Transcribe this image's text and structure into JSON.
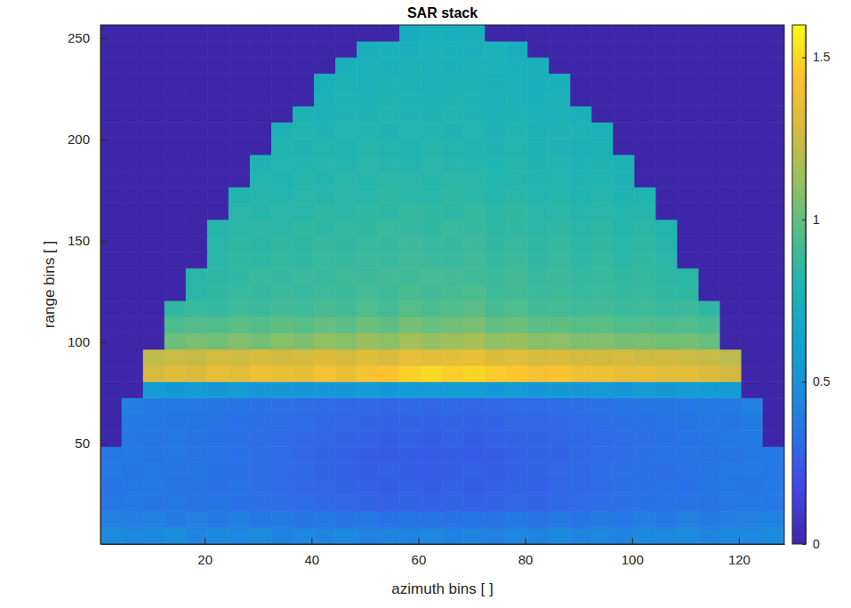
{
  "chart_data": {
    "type": "heatmap",
    "title": "SAR stack",
    "x_label": "azimuth bins [ ]",
    "y_label": "range bins [ ]",
    "color": "parula",
    "xlim": [
      0.5,
      128.5
    ],
    "ylim": [
      0.5,
      256.5
    ],
    "xticks": [
      20,
      40,
      60,
      80,
      100,
      120
    ],
    "yticks": [
      50,
      100,
      150,
      200,
      250
    ],
    "colorbar": {
      "range": [
        0,
        1.6
      ],
      "ticks": [
        0,
        0.5,
        1,
        1.5
      ]
    },
    "x_edges": [
      0.5,
      4.5,
      8.5,
      12.5,
      16.5,
      20.5,
      24.5,
      28.5,
      32.5,
      36.5,
      40.5,
      44.5,
      48.5,
      52.5,
      56.5,
      60.5,
      64.5,
      68.5,
      72.5,
      76.5,
      80.5,
      84.5,
      88.5,
      92.5,
      96.5,
      100.5,
      104.5,
      108.5,
      112.5,
      116.5,
      120.5,
      124.5,
      128.5
    ],
    "y_edges": [
      0.5,
      8.5,
      16.5,
      24.5,
      32.5,
      40.5,
      48.5,
      56.5,
      64.5,
      72.5,
      80.5,
      88.5,
      96.5,
      104.5,
      112.5,
      120.5,
      128.5,
      136.5,
      144.5,
      152.5,
      160.5,
      168.5,
      176.5,
      184.5,
      192.5,
      200.5,
      208.5,
      216.5,
      224.5,
      232.5,
      240.5,
      248.5,
      256.5
    ],
    "values": [
      [
        0.46,
        0.44,
        0.45,
        0.47,
        0.43,
        0.45,
        0.44,
        0.46,
        0.42,
        0.44,
        0.43,
        0.45,
        0.41,
        0.43,
        0.42,
        0.44,
        0.42,
        0.43,
        0.41,
        0.44,
        0.42,
        0.45,
        0.43,
        0.44,
        0.42,
        0.45,
        0.44,
        0.46,
        0.43,
        0.45,
        0.44,
        0.46
      ],
      [
        0.41,
        0.4,
        0.42,
        0.39,
        0.41,
        0.38,
        0.4,
        0.37,
        0.39,
        0.36,
        0.38,
        0.35,
        0.37,
        0.34,
        0.36,
        0.35,
        0.34,
        0.36,
        0.35,
        0.37,
        0.35,
        0.38,
        0.36,
        0.39,
        0.37,
        0.4,
        0.38,
        0.41,
        0.39,
        0.4,
        0.41,
        0.42
      ],
      [
        0.37,
        0.38,
        0.36,
        0.37,
        0.35,
        0.36,
        0.34,
        0.33,
        0.32,
        0.31,
        0.3,
        0.29,
        0.28,
        0.27,
        0.28,
        0.27,
        0.28,
        0.27,
        0.28,
        0.29,
        0.28,
        0.3,
        0.31,
        0.32,
        0.33,
        0.34,
        0.35,
        0.36,
        0.35,
        0.37,
        0.38,
        0.37
      ],
      [
        0.36,
        0.37,
        0.38,
        0.36,
        0.35,
        0.34,
        0.35,
        0.33,
        0.31,
        0.3,
        0.29,
        0.28,
        0.27,
        0.26,
        0.27,
        0.26,
        0.27,
        0.26,
        0.27,
        0.28,
        0.27,
        0.29,
        0.3,
        0.31,
        0.33,
        0.34,
        0.35,
        0.34,
        0.36,
        0.37,
        0.36,
        0.38
      ],
      [
        0.38,
        0.36,
        0.37,
        0.35,
        0.36,
        0.34,
        0.33,
        0.32,
        0.31,
        0.3,
        0.28,
        0.27,
        0.26,
        0.27,
        0.26,
        0.25,
        0.26,
        0.27,
        0.26,
        0.27,
        0.28,
        0.29,
        0.3,
        0.32,
        0.33,
        0.34,
        0.33,
        0.35,
        0.36,
        0.37,
        0.38,
        0.37
      ],
      [
        0.37,
        0.38,
        0.36,
        0.37,
        0.35,
        0.35,
        0.34,
        0.32,
        0.31,
        0.29,
        0.28,
        0.27,
        0.26,
        0.25,
        0.26,
        0.25,
        0.26,
        0.25,
        0.26,
        0.27,
        0.28,
        0.28,
        0.3,
        0.31,
        0.32,
        0.34,
        0.35,
        0.36,
        0.35,
        0.36,
        0.37,
        0.38
      ],
      [
        0,
        0.37,
        0.36,
        0.37,
        0.35,
        0.34,
        0.33,
        0.32,
        0.31,
        0.3,
        0.29,
        0.28,
        0.27,
        0.26,
        0.27,
        0.26,
        0.27,
        0.26,
        0.27,
        0.28,
        0.28,
        0.29,
        0.3,
        0.31,
        0.32,
        0.33,
        0.34,
        0.35,
        0.36,
        0.37,
        0.38,
        0
      ],
      [
        0,
        0.38,
        0.37,
        0.36,
        0.36,
        0.35,
        0.34,
        0.33,
        0.32,
        0.31,
        0.3,
        0.29,
        0.28,
        0.27,
        0.28,
        0.27,
        0.28,
        0.27,
        0.28,
        0.29,
        0.29,
        0.3,
        0.31,
        0.32,
        0.33,
        0.34,
        0.35,
        0.36,
        0.37,
        0.36,
        0.39,
        0
      ],
      [
        0,
        0.4,
        0.38,
        0.37,
        0.37,
        0.36,
        0.35,
        0.34,
        0.33,
        0.32,
        0.31,
        0.3,
        0.3,
        0.29,
        0.3,
        0.29,
        0.3,
        0.29,
        0.3,
        0.31,
        0.31,
        0.32,
        0.33,
        0.34,
        0.35,
        0.36,
        0.36,
        0.37,
        0.38,
        0.38,
        0.41,
        0
      ],
      [
        0,
        0,
        0.58,
        0.55,
        0.57,
        0.54,
        0.56,
        0.53,
        0.55,
        0.52,
        0.54,
        0.53,
        0.56,
        0.55,
        0.57,
        0.56,
        0.58,
        0.57,
        0.55,
        0.56,
        0.54,
        0.55,
        0.53,
        0.56,
        0.54,
        0.57,
        0.55,
        0.56,
        0.58,
        0.57,
        0,
        0
      ],
      [
        0,
        0,
        1.28,
        1.32,
        1.3,
        1.35,
        1.33,
        1.38,
        1.36,
        1.34,
        1.4,
        1.37,
        1.42,
        1.44,
        1.48,
        1.5,
        1.47,
        1.49,
        1.46,
        1.45,
        1.41,
        1.43,
        1.39,
        1.38,
        1.35,
        1.37,
        1.33,
        1.34,
        1.3,
        1.27,
        0,
        0
      ],
      [
        0,
        0,
        1.22,
        1.25,
        1.24,
        1.28,
        1.26,
        1.3,
        1.27,
        1.29,
        1.31,
        1.28,
        1.32,
        1.3,
        1.35,
        1.33,
        1.34,
        1.36,
        1.31,
        1.33,
        1.29,
        1.3,
        1.28,
        1.27,
        1.29,
        1.26,
        1.27,
        1.25,
        1.24,
        1.21,
        0,
        0
      ],
      [
        0,
        0,
        0,
        1.02,
        1.05,
        1.03,
        1.07,
        1.04,
        1.08,
        1.06,
        1.1,
        1.08,
        1.12,
        1.09,
        1.15,
        1.11,
        1.13,
        1.16,
        1.1,
        1.12,
        1.08,
        1.09,
        1.06,
        1.07,
        1.04,
        1.05,
        1.03,
        1.04,
        1.01,
        0,
        0,
        0
      ],
      [
        0,
        0,
        0,
        0.94,
        0.96,
        0.95,
        0.98,
        0.96,
        0.99,
        0.97,
        1.0,
        0.98,
        1.02,
        0.99,
        1.04,
        1.01,
        1.03,
        1.05,
        1.0,
        1.02,
        0.98,
        0.99,
        0.97,
        0.98,
        0.95,
        0.96,
        0.94,
        0.95,
        0.93,
        0,
        0,
        0
      ],
      [
        0,
        0,
        0,
        0.86,
        0.88,
        0.87,
        0.9,
        0.89,
        0.91,
        0.9,
        0.93,
        0.91,
        0.95,
        0.92,
        0.97,
        0.94,
        0.96,
        0.98,
        0.93,
        0.95,
        0.91,
        0.92,
        0.9,
        0.91,
        0.89,
        0.9,
        0.88,
        0.89,
        0.85,
        0,
        0,
        0
      ],
      [
        0,
        0,
        0,
        0,
        0.84,
        0.86,
        0.88,
        0.87,
        0.89,
        0.88,
        0.9,
        0.89,
        0.92,
        0.9,
        0.93,
        0.91,
        0.92,
        0.94,
        0.9,
        0.91,
        0.89,
        0.9,
        0.88,
        0.89,
        0.87,
        0.88,
        0.86,
        0.85,
        0,
        0,
        0,
        0
      ],
      [
        0,
        0,
        0,
        0,
        0.83,
        0.85,
        0.86,
        0.88,
        0.87,
        0.89,
        0.88,
        0.9,
        0.89,
        0.91,
        0.9,
        0.92,
        0.91,
        0.9,
        0.89,
        0.91,
        0.88,
        0.89,
        0.87,
        0.88,
        0.86,
        0.87,
        0.85,
        0.84,
        0,
        0,
        0,
        0
      ],
      [
        0,
        0,
        0,
        0,
        0,
        0.84,
        0.86,
        0.85,
        0.87,
        0.86,
        0.88,
        0.87,
        0.89,
        0.88,
        0.9,
        0.89,
        0.88,
        0.9,
        0.87,
        0.89,
        0.86,
        0.88,
        0.85,
        0.87,
        0.84,
        0.86,
        0.83,
        0,
        0,
        0,
        0,
        0
      ],
      [
        0,
        0,
        0,
        0,
        0,
        0.83,
        0.85,
        0.84,
        0.86,
        0.85,
        0.87,
        0.86,
        0.88,
        0.87,
        0.89,
        0.88,
        0.87,
        0.89,
        0.86,
        0.88,
        0.85,
        0.87,
        0.84,
        0.86,
        0.83,
        0.85,
        0.82,
        0,
        0,
        0,
        0,
        0
      ],
      [
        0,
        0,
        0,
        0,
        0,
        0.82,
        0.84,
        0.85,
        0.84,
        0.86,
        0.85,
        0.87,
        0.86,
        0.88,
        0.87,
        0.86,
        0.88,
        0.87,
        0.85,
        0.86,
        0.84,
        0.85,
        0.83,
        0.85,
        0.82,
        0.84,
        0.81,
        0,
        0,
        0,
        0,
        0
      ],
      [
        0,
        0,
        0,
        0,
        0,
        0,
        0.83,
        0.82,
        0.84,
        0.83,
        0.85,
        0.84,
        0.86,
        0.85,
        0.87,
        0.86,
        0.85,
        0.87,
        0.84,
        0.86,
        0.83,
        0.84,
        0.82,
        0.83,
        0.81,
        0.82,
        0,
        0,
        0,
        0,
        0,
        0
      ],
      [
        0,
        0,
        0,
        0,
        0,
        0,
        0.8,
        0.82,
        0.81,
        0.83,
        0.82,
        0.84,
        0.83,
        0.85,
        0.84,
        0.83,
        0.85,
        0.84,
        0.82,
        0.83,
        0.81,
        0.82,
        0.8,
        0.82,
        0.79,
        0.8,
        0,
        0,
        0,
        0,
        0,
        0
      ],
      [
        0,
        0,
        0,
        0,
        0,
        0,
        0,
        0.81,
        0.8,
        0.82,
        0.81,
        0.83,
        0.82,
        0.84,
        0.83,
        0.82,
        0.84,
        0.83,
        0.81,
        0.82,
        0.8,
        0.81,
        0.79,
        0.8,
        0.78,
        0,
        0,
        0,
        0,
        0,
        0,
        0
      ],
      [
        0,
        0,
        0,
        0,
        0,
        0,
        0,
        0.79,
        0.81,
        0.8,
        0.82,
        0.81,
        0.83,
        0.82,
        0.81,
        0.83,
        0.82,
        0.81,
        0.8,
        0.82,
        0.79,
        0.8,
        0.78,
        0.79,
        0.77,
        0,
        0,
        0,
        0,
        0,
        0,
        0
      ],
      [
        0,
        0,
        0,
        0,
        0,
        0,
        0,
        0,
        0.8,
        0.79,
        0.81,
        0.8,
        0.82,
        0.81,
        0.8,
        0.82,
        0.81,
        0.8,
        0.79,
        0.81,
        0.78,
        0.79,
        0.77,
        0.78,
        0,
        0,
        0,
        0,
        0,
        0,
        0,
        0
      ],
      [
        0,
        0,
        0,
        0,
        0,
        0,
        0,
        0,
        0.78,
        0.8,
        0.79,
        0.81,
        0.8,
        0.79,
        0.81,
        0.8,
        0.79,
        0.81,
        0.78,
        0.8,
        0.77,
        0.79,
        0.78,
        0.77,
        0,
        0,
        0,
        0,
        0,
        0,
        0,
        0
      ],
      [
        0,
        0,
        0,
        0,
        0,
        0,
        0,
        0,
        0,
        0.78,
        0.77,
        0.79,
        0.78,
        0.8,
        0.79,
        0.78,
        0.8,
        0.79,
        0.77,
        0.78,
        0.76,
        0.77,
        0.75,
        0,
        0,
        0,
        0,
        0,
        0,
        0,
        0,
        0
      ],
      [
        0,
        0,
        0,
        0,
        0,
        0,
        0,
        0,
        0,
        0,
        0.76,
        0.78,
        0.77,
        0.79,
        0.78,
        0.77,
        0.79,
        0.78,
        0.76,
        0.77,
        0.75,
        0.76,
        0,
        0,
        0,
        0,
        0,
        0,
        0,
        0,
        0,
        0
      ],
      [
        0,
        0,
        0,
        0,
        0,
        0,
        0,
        0,
        0,
        0,
        0.75,
        0.77,
        0.76,
        0.78,
        0.77,
        0.76,
        0.78,
        0.77,
        0.75,
        0.76,
        0.74,
        0.75,
        0,
        0,
        0,
        0,
        0,
        0,
        0,
        0,
        0,
        0
      ],
      [
        0,
        0,
        0,
        0,
        0,
        0,
        0,
        0,
        0,
        0,
        0,
        0.74,
        0.76,
        0.75,
        0.77,
        0.76,
        0.75,
        0.77,
        0.76,
        0.74,
        0.75,
        0,
        0,
        0,
        0,
        0,
        0,
        0,
        0,
        0,
        0,
        0
      ],
      [
        0,
        0,
        0,
        0,
        0,
        0,
        0,
        0,
        0,
        0,
        0,
        0,
        0.73,
        0.75,
        0.74,
        0.76,
        0.75,
        0.74,
        0.76,
        0.73,
        0,
        0,
        0,
        0,
        0,
        0,
        0,
        0,
        0,
        0,
        0,
        0
      ],
      [
        0,
        0,
        0,
        0,
        0,
        0,
        0,
        0,
        0,
        0,
        0,
        0,
        0,
        0,
        0.72,
        0.74,
        0.73,
        0.75,
        0,
        0,
        0,
        0,
        0,
        0,
        0,
        0,
        0,
        0,
        0,
        0,
        0,
        0
      ]
    ]
  }
}
